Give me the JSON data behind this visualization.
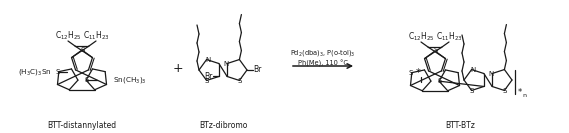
{
  "bg_color": "#ffffff",
  "fig_width": 5.69,
  "fig_height": 1.33,
  "dpi": 100,
  "label_btt_distannylated": "BTT-distannylated",
  "label_btz_dibromo": "BTz-dibromo",
  "label_product": "BTT-BTz",
  "reagent_line1": "Pd$_2$(dba)$_3$, P(o-tol)$_3$",
  "reagent_line2": "Ph(Me), 110 °C",
  "plus_sign": "+",
  "c12h25": "C$_{12}$H$_{25}$",
  "c11h23": "C$_{11}$H$_{23}$",
  "sn_left": "(H$_3$C)$_3$Sn",
  "sn_right": "Sn(CH$_3$)$_3$",
  "br_left": "Br",
  "br_right": "Br",
  "sulfur": "S",
  "nitrogen": "N",
  "star": "*",
  "n_sub": "n"
}
